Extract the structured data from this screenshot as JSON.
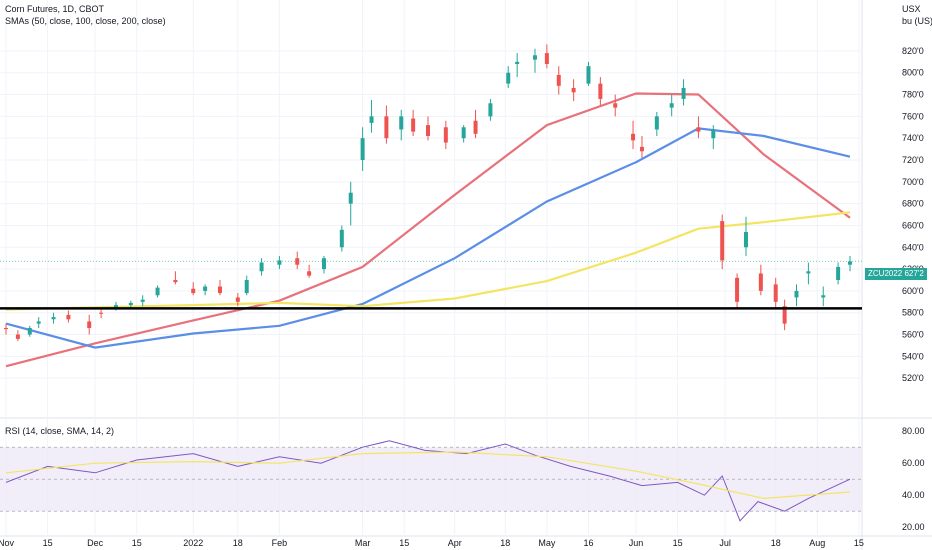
{
  "header": {
    "symbol_line": "Corn Futures, 1D, CBOT",
    "indicator_line": "SMAs (50, close, 100, close, 200, close)",
    "rsi_line": "RSI (14, close, SMA, 14, 2)"
  },
  "currency": {
    "code": "USX",
    "unit": "bu (US)"
  },
  "current_price": {
    "ticker": "ZCU2022",
    "value": "627'2",
    "color": "#26a69a"
  },
  "colors": {
    "up": "#26a69a",
    "down": "#ef5350",
    "sma50": "#e8717a",
    "sma100": "#5b8ee6",
    "sma200": "#f3e563",
    "rsi": "#7e57c2",
    "rsi_ma": "#f3e563",
    "rsi_band": "#ede7f6",
    "support": "#000000"
  },
  "price_axis": {
    "labels": [
      "820'0",
      "800'0",
      "780'0",
      "760'0",
      "740'0",
      "720'0",
      "700'0",
      "680'0",
      "660'0",
      "640'0",
      "620'0",
      "600'0",
      "580'0",
      "560'0",
      "540'0",
      "520'0"
    ]
  },
  "rsi_axis": {
    "labels": [
      "80.00",
      "60.00",
      "40.00",
      "20.00"
    ]
  },
  "time_axis": {
    "labels": [
      "Nov",
      "15",
      "Dec",
      "15",
      "2022",
      "18",
      "Feb",
      "Mar",
      "15",
      "Apr",
      "18",
      "May",
      "16",
      "Jun",
      "15",
      "Jul",
      "18",
      "Aug",
      "15"
    ]
  },
  "chart_data": [
    {
      "type": "candlestick",
      "title": "Corn Futures, 1D, CBOT",
      "x_start": "2021-11-01",
      "x_end": "2022-08-12",
      "y_unit": "USX / bu (US)",
      "ylim": [
        505,
        835
      ],
      "support_level": 584,
      "ohlc_sampled": [
        [
          "2021-11-01",
          566,
          570,
          560,
          565
        ],
        [
          "2021-11-05",
          560,
          564,
          554,
          556
        ],
        [
          "2021-11-09",
          560,
          568,
          558,
          566
        ],
        [
          "2021-11-12",
          570,
          576,
          566,
          572
        ],
        [
          "2021-11-17",
          574,
          580,
          570,
          576
        ],
        [
          "2021-11-22",
          578,
          582,
          571,
          574
        ],
        [
          "2021-11-29",
          572,
          578,
          560,
          566
        ],
        [
          "2021-12-03",
          580,
          584,
          575,
          579
        ],
        [
          "2021-12-08",
          584,
          590,
          582,
          587
        ],
        [
          "2021-12-13",
          587,
          591,
          583,
          589
        ],
        [
          "2021-12-17",
          590,
          596,
          586,
          592
        ],
        [
          "2021-12-22",
          596,
          605,
          594,
          603
        ],
        [
          "2021-12-28",
          610,
          618,
          606,
          608
        ],
        [
          "2022-01-03",
          602,
          608,
          596,
          598
        ],
        [
          "2022-01-07",
          600,
          606,
          596,
          604
        ],
        [
          "2022-01-12",
          604,
          610,
          596,
          598
        ],
        [
          "2022-01-18",
          594,
          598,
          586,
          590
        ],
        [
          "2022-01-21",
          598,
          614,
          596,
          610
        ],
        [
          "2022-01-26",
          618,
          630,
          614,
          626
        ],
        [
          "2022-02-01",
          624,
          632,
          620,
          628
        ],
        [
          "2022-02-07",
          630,
          636,
          620,
          624
        ],
        [
          "2022-02-11",
          618,
          624,
          612,
          614
        ],
        [
          "2022-02-16",
          620,
          632,
          616,
          630
        ],
        [
          "2022-02-22",
          640,
          660,
          636,
          656
        ],
        [
          "2022-02-25",
          680,
          700,
          660,
          690
        ],
        [
          "2022-03-01",
          720,
          750,
          710,
          740
        ],
        [
          "2022-03-04",
          754,
          775,
          745,
          760
        ],
        [
          "2022-03-09",
          760,
          770,
          735,
          740
        ],
        [
          "2022-03-14",
          748,
          766,
          738,
          760
        ],
        [
          "2022-03-18",
          758,
          766,
          742,
          746
        ],
        [
          "2022-03-23",
          752,
          760,
          738,
          742
        ],
        [
          "2022-03-29",
          750,
          756,
          730,
          736
        ],
        [
          "2022-04-04",
          740,
          752,
          736,
          750
        ],
        [
          "2022-04-08",
          756,
          766,
          740,
          744
        ],
        [
          "2022-04-13",
          760,
          776,
          756,
          772
        ],
        [
          "2022-04-19",
          790,
          806,
          786,
          800
        ],
        [
          "2022-04-22",
          808,
          818,
          796,
          810
        ],
        [
          "2022-04-28",
          812,
          822,
          800,
          816
        ],
        [
          "2022-05-02",
          818,
          826,
          804,
          808
        ],
        [
          "2022-05-06",
          798,
          806,
          780,
          788
        ],
        [
          "2022-05-11",
          786,
          794,
          774,
          782
        ],
        [
          "2022-05-16",
          790,
          810,
          788,
          806
        ],
        [
          "2022-05-20",
          790,
          796,
          770,
          776
        ],
        [
          "2022-05-25",
          772,
          780,
          760,
          768
        ],
        [
          "2022-05-31",
          744,
          756,
          730,
          738
        ],
        [
          "2022-06-03",
          732,
          742,
          722,
          728
        ],
        [
          "2022-06-08",
          748,
          764,
          742,
          760
        ],
        [
          "2022-06-13",
          768,
          780,
          760,
          772
        ],
        [
          "2022-06-17",
          776,
          794,
          770,
          786
        ],
        [
          "2022-06-22",
          750,
          760,
          740,
          746
        ],
        [
          "2022-06-27",
          740,
          752,
          730,
          748
        ],
        [
          "2022-06-30",
          664,
          670,
          620,
          628
        ],
        [
          "2022-07-05",
          612,
          616,
          584,
          590
        ],
        [
          "2022-07-08",
          640,
          668,
          632,
          654
        ],
        [
          "2022-07-13",
          616,
          624,
          596,
          600
        ],
        [
          "2022-07-18",
          606,
          612,
          584,
          590
        ],
        [
          "2022-07-21",
          586,
          592,
          564,
          570
        ],
        [
          "2022-07-25",
          594,
          606,
          586,
          600
        ],
        [
          "2022-07-29",
          616,
          626,
          606,
          618
        ],
        [
          "2022-08-03",
          594,
          604,
          586,
          596
        ],
        [
          "2022-08-08",
          610,
          626,
          606,
          622
        ],
        [
          "2022-08-12",
          624,
          632,
          618,
          627
        ]
      ],
      "series": [
        {
          "name": "SMA 50",
          "x": [
            "2021-11-01",
            "2021-12-01",
            "2022-01-03",
            "2022-02-01",
            "2022-03-01",
            "2022-04-01",
            "2022-05-02",
            "2022-06-01",
            "2022-06-22",
            "2022-07-14",
            "2022-08-12"
          ],
          "values": [
            531,
            552,
            573,
            591,
            622,
            688,
            752,
            781,
            780,
            725,
            667
          ]
        },
        {
          "name": "SMA 100",
          "x": [
            "2021-11-01",
            "2021-12-01",
            "2022-01-03",
            "2022-02-01",
            "2022-03-01",
            "2022-04-01",
            "2022-05-02",
            "2022-06-01",
            "2022-06-22",
            "2022-07-14",
            "2022-08-12"
          ],
          "values": [
            570,
            548,
            561,
            568,
            588,
            630,
            682,
            718,
            749,
            742,
            723
          ]
        },
        {
          "name": "SMA 200",
          "x": [
            "2021-11-01",
            "2021-12-01",
            "2022-01-03",
            "2022-02-01",
            "2022-03-01",
            "2022-04-01",
            "2022-05-02",
            "2022-06-01",
            "2022-06-22",
            "2022-07-14",
            "2022-08-12"
          ],
          "values": [
            583,
            585,
            587,
            589,
            586,
            593,
            609,
            635,
            657,
            663,
            672
          ]
        }
      ],
      "grid": true,
      "legend": "top-left"
    },
    {
      "type": "line",
      "title": "RSI (14, close, SMA, 14, 2)",
      "ylim": [
        17,
        82
      ],
      "bands": [
        30,
        70
      ],
      "midline": 50,
      "series": [
        {
          "name": "RSI",
          "x": [
            "2021-11-01",
            "2021-11-15",
            "2021-12-01",
            "2021-12-15",
            "2022-01-03",
            "2022-01-18",
            "2022-02-01",
            "2022-02-15",
            "2022-03-01",
            "2022-03-10",
            "2022-03-22",
            "2022-04-05",
            "2022-04-18",
            "2022-04-28",
            "2022-05-10",
            "2022-05-23",
            "2022-06-03",
            "2022-06-15",
            "2022-06-24",
            "2022-06-30",
            "2022-07-06",
            "2022-07-12",
            "2022-07-21",
            "2022-07-29",
            "2022-08-12"
          ],
          "values": [
            48,
            58,
            54,
            62,
            66,
            58,
            64,
            60,
            70,
            74,
            68,
            66,
            72,
            65,
            58,
            52,
            46,
            48,
            40,
            52,
            24,
            36,
            30,
            38,
            50
          ]
        },
        {
          "name": "RSI SMA",
          "x": [
            "2021-11-01",
            "2021-12-01",
            "2022-01-03",
            "2022-02-01",
            "2022-03-01",
            "2022-04-01",
            "2022-05-02",
            "2022-06-01",
            "2022-06-22",
            "2022-07-14",
            "2022-08-12"
          ],
          "values": [
            54,
            60,
            61,
            60,
            66,
            67,
            64,
            55,
            47,
            38,
            42
          ]
        }
      ]
    }
  ]
}
